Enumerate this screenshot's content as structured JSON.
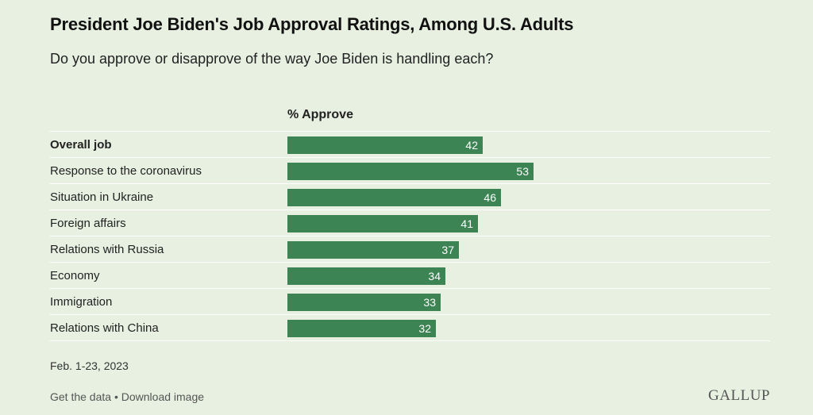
{
  "title": "President Joe Biden's Job Approval Ratings, Among U.S. Adults",
  "subtitle": "Do you approve or disapprove of the way Joe Biden is handling each?",
  "column_header": "% Approve",
  "date_note": "Feb. 1-23, 2023",
  "footer": {
    "get_data": "Get the data",
    "separator": "•",
    "download": "Download image"
  },
  "logo_text": "GALLUP",
  "colors": {
    "bar": "#3c8453",
    "background": "#e7f0e1",
    "row_divider": "#ffffff"
  },
  "chart_data": {
    "type": "bar",
    "orientation": "horizontal",
    "title": "President Joe Biden's Job Approval Ratings, Among U.S. Adults",
    "subtitle": "Do you approve or disapprove of the way Joe Biden is handling each?",
    "ylabel": "% Approve",
    "categories": [
      "Overall job",
      "Response to the coronavirus",
      "Situation in Ukraine",
      "Foreign affairs",
      "Relations with Russia",
      "Economy",
      "Immigration",
      "Relations with China"
    ],
    "values": [
      42,
      53,
      46,
      41,
      37,
      34,
      33,
      32
    ],
    "bold_categories": [
      "Overall job"
    ],
    "xlim": [
      0,
      100
    ],
    "grid": false,
    "legend": "none",
    "data_labels": true
  }
}
